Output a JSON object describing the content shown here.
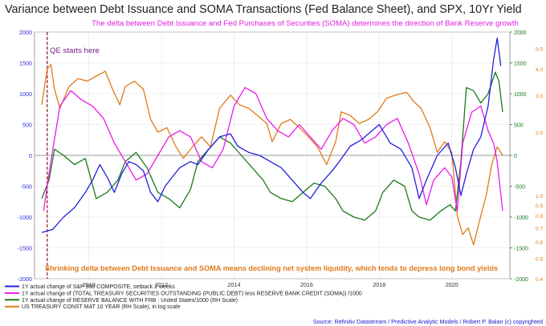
{
  "chart_data": {
    "type": "line",
    "title": "Variance between Debt Issuance and SOMA Transactions (Fed Balance Sheet), and SPX, 10Yr Yield",
    "subtitle": "The delta between Debt Issuance and Fed Purchases of Securities (SOMA) determines the direction of Bank Reserve growth",
    "annotations": {
      "qe_start": "QE starts here",
      "bottom_note": "Shrinking delta between Debt Issuance and SOMA means declining net system liquidity, which tends to depress long bond yields"
    },
    "source": "Source: Refinitiv Datastream / Predictive Analytic Models / Robert P. Balan  (c) copyrighted",
    "x_ticks": [
      "2010",
      "2012",
      "2014",
      "2016",
      "2018",
      "2020"
    ],
    "xlim": [
      2008.5,
      2021.6
    ],
    "qe_start_x": 2008.85,
    "left_axis": {
      "ylim": [
        -2000,
        2000
      ],
      "ticks": [
        "-2000",
        "-1500",
        "-1000",
        "-500",
        "0",
        "500",
        "1000",
        "1500",
        "2000"
      ],
      "color": "#2b2bd6"
    },
    "right_axis_reserves": {
      "ylim": [
        -2000,
        2000
      ],
      "ticks": [
        "-2000",
        "-1500",
        "-1000",
        "-500",
        "0",
        "500",
        "1000",
        "1500",
        "2000"
      ],
      "color": "#1a7a1a"
    },
    "right_axis_yield": {
      "scale": "log",
      "ylim": [
        0.4,
        6.0
      ],
      "ticks": [
        "0.4",
        "0.5",
        "0.6",
        "0.7",
        "0.8",
        "0.9",
        "1.0",
        "2.0",
        "3.0",
        "4.0",
        "5.0"
      ],
      "color": "#e07a1a"
    },
    "series": [
      {
        "name": "1Y actual change of S&P 500 COMPOSITE, setback 2 weeks",
        "color": "#2020e0",
        "axis": "left",
        "points": [
          [
            2008.7,
            -1250
          ],
          [
            2009.0,
            -1200
          ],
          [
            2009.3,
            -1000
          ],
          [
            2009.6,
            -850
          ],
          [
            2009.9,
            -600
          ],
          [
            2010.1,
            -400
          ],
          [
            2010.3,
            -150
          ],
          [
            2010.5,
            -350
          ],
          [
            2010.7,
            -600
          ],
          [
            2010.9,
            -300
          ],
          [
            2011.1,
            -100
          ],
          [
            2011.3,
            -150
          ],
          [
            2011.5,
            -250
          ],
          [
            2011.7,
            -600
          ],
          [
            2011.9,
            -750
          ],
          [
            2012.1,
            -500
          ],
          [
            2012.3,
            -350
          ],
          [
            2012.5,
            -200
          ],
          [
            2012.8,
            -100
          ],
          [
            2013.0,
            -150
          ],
          [
            2013.3,
            100
          ],
          [
            2013.6,
            300
          ],
          [
            2013.9,
            350
          ],
          [
            2014.1,
            150
          ],
          [
            2014.4,
            50
          ],
          [
            2014.7,
            0
          ],
          [
            2015.0,
            -100
          ],
          [
            2015.3,
            -200
          ],
          [
            2015.6,
            -400
          ],
          [
            2015.9,
            -600
          ],
          [
            2016.1,
            -700
          ],
          [
            2016.4,
            -450
          ],
          [
            2016.7,
            -250
          ],
          [
            2016.9,
            -100
          ],
          [
            2017.2,
            150
          ],
          [
            2017.5,
            250
          ],
          [
            2017.8,
            400
          ],
          [
            2018.0,
            500
          ],
          [
            2018.3,
            200
          ],
          [
            2018.6,
            100
          ],
          [
            2018.9,
            -200
          ],
          [
            2019.1,
            -700
          ],
          [
            2019.3,
            -400
          ],
          [
            2019.6,
            0
          ],
          [
            2019.9,
            200
          ],
          [
            2020.1,
            -200
          ],
          [
            2020.25,
            -650
          ],
          [
            2020.4,
            -300
          ],
          [
            2020.6,
            100
          ],
          [
            2020.8,
            300
          ],
          [
            2021.0,
            800
          ],
          [
            2021.15,
            1550
          ],
          [
            2021.25,
            1900
          ],
          [
            2021.35,
            1450
          ]
        ]
      },
      {
        "name": "1Y actual change of (TOTAL TREASURY SECURITIES OUTSTANDING (PUBLIC DEBT) less RESERVE BANK CREDIT (SOMA)) /1000",
        "color": "#ea1aea",
        "axis": "left",
        "points": [
          [
            2008.75,
            -900
          ],
          [
            2008.95,
            -100
          ],
          [
            2009.2,
            800
          ],
          [
            2009.5,
            1050
          ],
          [
            2009.8,
            900
          ],
          [
            2010.1,
            800
          ],
          [
            2010.4,
            600
          ],
          [
            2010.7,
            200
          ],
          [
            2011.0,
            -100
          ],
          [
            2011.3,
            -400
          ],
          [
            2011.6,
            -300
          ],
          [
            2011.9,
            0
          ],
          [
            2012.2,
            300
          ],
          [
            2012.5,
            400
          ],
          [
            2012.8,
            300
          ],
          [
            2013.1,
            -100
          ],
          [
            2013.4,
            -200
          ],
          [
            2013.7,
            100
          ],
          [
            2014.0,
            800
          ],
          [
            2014.3,
            1100
          ],
          [
            2014.6,
            1000
          ],
          [
            2014.9,
            600
          ],
          [
            2015.2,
            400
          ],
          [
            2015.5,
            300
          ],
          [
            2015.8,
            500
          ],
          [
            2016.1,
            300
          ],
          [
            2016.4,
            100
          ],
          [
            2016.7,
            400
          ],
          [
            2017.0,
            600
          ],
          [
            2017.3,
            500
          ],
          [
            2017.6,
            200
          ],
          [
            2017.9,
            300
          ],
          [
            2018.2,
            500
          ],
          [
            2018.5,
            600
          ],
          [
            2018.8,
            200
          ],
          [
            2019.1,
            -300
          ],
          [
            2019.3,
            -800
          ],
          [
            2019.5,
            -400
          ],
          [
            2019.8,
            -200
          ],
          [
            2020.0,
            -350
          ],
          [
            2020.15,
            -900
          ],
          [
            2020.3,
            200
          ],
          [
            2020.55,
            700
          ],
          [
            2020.8,
            800
          ],
          [
            2021.0,
            400
          ],
          [
            2021.15,
            200
          ],
          [
            2021.25,
            -100
          ],
          [
            2021.4,
            -900
          ]
        ]
      },
      {
        "name": "1Y actual change of RESERVE BALANCE WITH FRB : United States/1000 (RH Scale)",
        "color": "#1a7a1a",
        "axis": "right",
        "points": [
          [
            2008.7,
            -700
          ],
          [
            2008.9,
            -400
          ],
          [
            2009.05,
            100
          ],
          [
            2009.3,
            0
          ],
          [
            2009.6,
            -150
          ],
          [
            2009.9,
            -50
          ],
          [
            2010.2,
            -700
          ],
          [
            2010.5,
            -600
          ],
          [
            2010.8,
            -400
          ],
          [
            2011.0,
            -100
          ],
          [
            2011.3,
            50
          ],
          [
            2011.6,
            -200
          ],
          [
            2011.9,
            -600
          ],
          [
            2012.2,
            -700
          ],
          [
            2012.5,
            -850
          ],
          [
            2012.8,
            -550
          ],
          [
            2013.0,
            -100
          ],
          [
            2013.3,
            100
          ],
          [
            2013.6,
            300
          ],
          [
            2013.9,
            200
          ],
          [
            2014.2,
            0
          ],
          [
            2014.5,
            -200
          ],
          [
            2014.8,
            -400
          ],
          [
            2015.0,
            -600
          ],
          [
            2015.3,
            -700
          ],
          [
            2015.6,
            -750
          ],
          [
            2015.9,
            -600
          ],
          [
            2016.2,
            -450
          ],
          [
            2016.5,
            -500
          ],
          [
            2016.8,
            -700
          ],
          [
            2017.0,
            -900
          ],
          [
            2017.3,
            -1000
          ],
          [
            2017.6,
            -1050
          ],
          [
            2017.9,
            -900
          ],
          [
            2018.1,
            -600
          ],
          [
            2018.4,
            -400
          ],
          [
            2018.7,
            -500
          ],
          [
            2018.9,
            -900
          ],
          [
            2019.1,
            -1000
          ],
          [
            2019.4,
            -1050
          ],
          [
            2019.7,
            -900
          ],
          [
            2019.95,
            -800
          ],
          [
            2020.1,
            -900
          ],
          [
            2020.25,
            -100
          ],
          [
            2020.4,
            1100
          ],
          [
            2020.6,
            1050
          ],
          [
            2020.8,
            850
          ],
          [
            2021.0,
            1000
          ],
          [
            2021.2,
            1350
          ],
          [
            2021.3,
            1200
          ],
          [
            2021.4,
            700
          ]
        ]
      },
      {
        "name": "US TREASURY CONST MAT 10 YEAR (RH Scale), in log scale",
        "color": "#e07a1a",
        "axis": "right_yield",
        "points": [
          [
            2008.7,
            2.7
          ],
          [
            2008.85,
            4.0
          ],
          [
            2008.95,
            4.2
          ],
          [
            2009.05,
            3.2
          ],
          [
            2009.2,
            2.6
          ],
          [
            2009.45,
            3.3
          ],
          [
            2009.7,
            3.6
          ],
          [
            2009.95,
            3.5
          ],
          [
            2010.2,
            3.7
          ],
          [
            2010.45,
            3.9
          ],
          [
            2010.65,
            3.2
          ],
          [
            2010.85,
            2.7
          ],
          [
            2011.0,
            3.3
          ],
          [
            2011.25,
            3.5
          ],
          [
            2011.5,
            3.2
          ],
          [
            2011.7,
            2.3
          ],
          [
            2011.9,
            2.0
          ],
          [
            2012.15,
            2.1
          ],
          [
            2012.4,
            1.7
          ],
          [
            2012.6,
            1.5
          ],
          [
            2012.85,
            1.7
          ],
          [
            2013.1,
            1.9
          ],
          [
            2013.35,
            1.7
          ],
          [
            2013.6,
            2.6
          ],
          [
            2013.9,
            3.0
          ],
          [
            2014.15,
            2.7
          ],
          [
            2014.4,
            2.6
          ],
          [
            2014.65,
            2.4
          ],
          [
            2014.9,
            2.2
          ],
          [
            2015.05,
            1.8
          ],
          [
            2015.3,
            2.2
          ],
          [
            2015.55,
            2.3
          ],
          [
            2015.8,
            2.1
          ],
          [
            2016.05,
            1.9
          ],
          [
            2016.3,
            1.7
          ],
          [
            2016.55,
            1.4
          ],
          [
            2016.8,
            1.8
          ],
          [
            2016.95,
            2.5
          ],
          [
            2017.2,
            2.4
          ],
          [
            2017.45,
            2.2
          ],
          [
            2017.7,
            2.3
          ],
          [
            2017.95,
            2.5
          ],
          [
            2018.2,
            2.9
          ],
          [
            2018.45,
            3.0
          ],
          [
            2018.75,
            3.1
          ],
          [
            2018.95,
            2.8
          ],
          [
            2019.15,
            2.6
          ],
          [
            2019.4,
            2.1
          ],
          [
            2019.6,
            1.6
          ],
          [
            2019.8,
            1.8
          ],
          [
            2020.0,
            1.6
          ],
          [
            2020.15,
            0.8
          ],
          [
            2020.3,
            0.65
          ],
          [
            2020.45,
            0.7
          ],
          [
            2020.6,
            0.58
          ],
          [
            2020.8,
            0.8
          ],
          [
            2020.95,
            1.0
          ],
          [
            2021.1,
            1.4
          ],
          [
            2021.25,
            1.7
          ],
          [
            2021.4,
            1.55
          ]
        ]
      }
    ]
  }
}
